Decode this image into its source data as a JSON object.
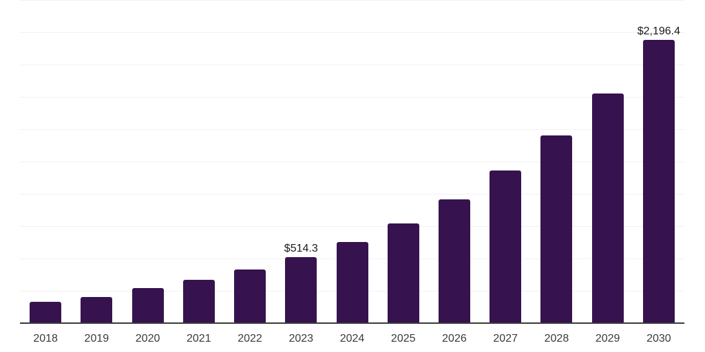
{
  "chart_data": {
    "type": "bar",
    "title": "",
    "xlabel": "",
    "ylabel": "",
    "categories": [
      "2018",
      "2019",
      "2020",
      "2021",
      "2022",
      "2023",
      "2024",
      "2025",
      "2026",
      "2027",
      "2028",
      "2029",
      "2030"
    ],
    "values": [
      170,
      205,
      277,
      337,
      418,
      514.3,
      631,
      774,
      960,
      1184,
      1458,
      1784,
      2196.4
    ],
    "value_labels": {
      "2023": "$514.3",
      "2030": "$2,196.4"
    },
    "ylim": [
      0,
      2500
    ],
    "gridline_step": 250,
    "grid": true,
    "legend_position": "none",
    "bar_color": "#36134e",
    "axis_line_color": "#3a3a3a",
    "gridline_color": "#f1f1f1",
    "tick_label_color": "#3a3a3a",
    "value_label_color": "#1a1a1a",
    "background_color": "#ffffff"
  }
}
